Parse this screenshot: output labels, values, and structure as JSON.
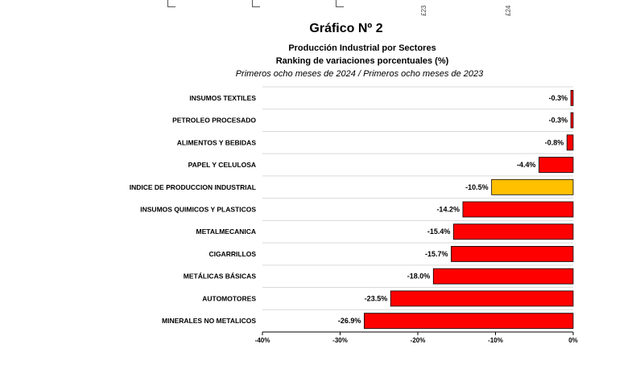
{
  "top_fragment": {
    "label_a": "£23",
    "label_b": "£24"
  },
  "chart_data": {
    "type": "bar",
    "orientation": "horizontal",
    "title": "Gráfico Nº 2",
    "subtitle_1": "Producción Industrial por Sectores",
    "subtitle_2": "Ranking de variaciones porcentuales (%)",
    "subtitle_3": "Primeros ocho meses de 2024 / Primeros ocho meses de 2023",
    "categories": [
      "INSUMOS TEXTILES",
      "PETROLEO PROCESADO",
      "ALIMENTOS Y BEBIDAS",
      "PAPEL Y CELULOSA",
      "INDICE DE PRODUCCION INDUSTRIAL",
      "INSUMOS QUIMICOS Y PLASTICOS",
      "METALMECANICA",
      "CIGARRILLOS",
      "METÁLICAS BÁSICAS",
      "AUTOMOTORES",
      "MINERALES NO METALICOS"
    ],
    "values": [
      -0.3,
      -0.3,
      -0.8,
      -4.4,
      -10.5,
      -14.2,
      -15.4,
      -15.7,
      -18.0,
      -23.5,
      -26.9
    ],
    "value_labels": [
      "-0.3%",
      "-0.3%",
      "-0.8%",
      "-4.4%",
      "-10.5%",
      "-14.2%",
      "-15.4%",
      "-15.7%",
      "-18.0%",
      "-23.5%",
      "-26.9%"
    ],
    "highlight_index": 4,
    "xlim": [
      -40,
      0
    ],
    "xticks": [
      -40,
      -30,
      -20,
      -10,
      0
    ],
    "xtick_labels": [
      "-40%",
      "-30%",
      "-20%",
      "-10%",
      "0%"
    ],
    "grid": true,
    "colors": {
      "bar": "#ff0000",
      "highlight": "#ffc000",
      "outline": "#000000",
      "grid": "#d9d9d9"
    }
  }
}
